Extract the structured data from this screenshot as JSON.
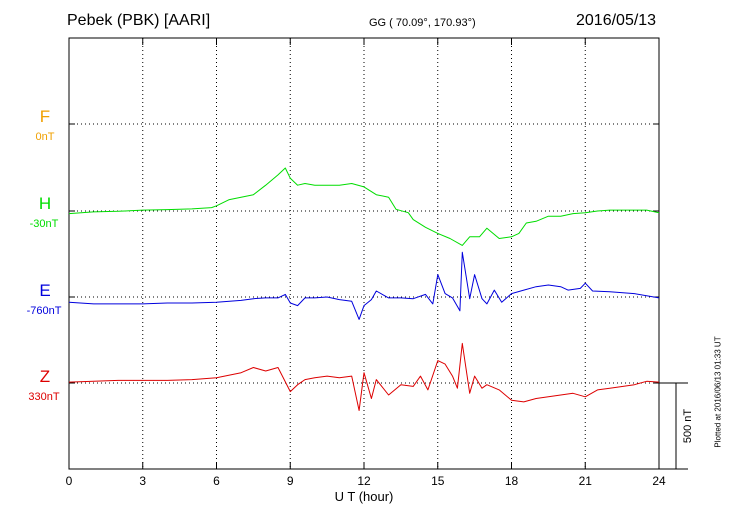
{
  "header": {
    "station": "Pebek (PBK)  [AARI]",
    "coords": "GG ( 70.09°, 170.93°)",
    "date": "2016/05/13"
  },
  "plotted_note": "Plotted at 2016/06/13 01:33 UT",
  "chart_data": {
    "type": "line",
    "title": "Pebek (PBK)  [AARI]",
    "xlabel": "U T (hour)",
    "ylabel": "",
    "xlim": [
      0,
      24
    ],
    "x_ticks": [
      0,
      3,
      6,
      9,
      12,
      15,
      18,
      21,
      24
    ],
    "grid": true,
    "scale_bar": {
      "label": "500 nT",
      "value": 500
    },
    "series": [
      {
        "name": "F",
        "offset_label": "0nT",
        "color": "#f0a000",
        "values": []
      },
      {
        "name": "H",
        "offset_label": "-30nT",
        "color": "#00dd00",
        "points": [
          [
            0,
            -15
          ],
          [
            1,
            -5
          ],
          [
            2,
            -2
          ],
          [
            3,
            5
          ],
          [
            4,
            8
          ],
          [
            5,
            12
          ],
          [
            5.8,
            20
          ],
          [
            6,
            30
          ],
          [
            6.5,
            65
          ],
          [
            7,
            80
          ],
          [
            7.5,
            95
          ],
          [
            8,
            150
          ],
          [
            8.5,
            210
          ],
          [
            8.8,
            250
          ],
          [
            9,
            190
          ],
          [
            9.3,
            150
          ],
          [
            9.6,
            160
          ],
          [
            10,
            150
          ],
          [
            10.5,
            150
          ],
          [
            11,
            150
          ],
          [
            11.5,
            160
          ],
          [
            12,
            140
          ],
          [
            12.5,
            95
          ],
          [
            13,
            80
          ],
          [
            13.3,
            10
          ],
          [
            13.8,
            -10
          ],
          [
            14,
            -50
          ],
          [
            14.5,
            -95
          ],
          [
            15,
            -130
          ],
          [
            15.5,
            -160
          ],
          [
            16,
            -200
          ],
          [
            16.3,
            -150
          ],
          [
            16.7,
            -150
          ],
          [
            17,
            -100
          ],
          [
            17.5,
            -160
          ],
          [
            18,
            -150
          ],
          [
            18.3,
            -130
          ],
          [
            18.6,
            -70
          ],
          [
            19,
            -60
          ],
          [
            19.5,
            -30
          ],
          [
            20,
            -30
          ],
          [
            20.5,
            -15
          ],
          [
            21,
            -10
          ],
          [
            21.5,
            0
          ],
          [
            22,
            5
          ],
          [
            22.5,
            5
          ],
          [
            23,
            5
          ],
          [
            23.5,
            5
          ],
          [
            24,
            -10
          ]
        ]
      },
      {
        "name": "E",
        "offset_label": "-760nT",
        "color": "#0000dd",
        "points": [
          [
            0,
            -30
          ],
          [
            1,
            -40
          ],
          [
            2,
            -40
          ],
          [
            3,
            -40
          ],
          [
            4,
            -35
          ],
          [
            5,
            -35
          ],
          [
            6,
            -30
          ],
          [
            7,
            -20
          ],
          [
            7.5,
            -10
          ],
          [
            8,
            -5
          ],
          [
            8.5,
            -5
          ],
          [
            8.8,
            15
          ],
          [
            9,
            -35
          ],
          [
            9.3,
            -50
          ],
          [
            9.6,
            -5
          ],
          [
            10,
            -5
          ],
          [
            10.5,
            0
          ],
          [
            11,
            -15
          ],
          [
            11.5,
            -25
          ],
          [
            11.8,
            -130
          ],
          [
            12,
            -50
          ],
          [
            12.3,
            -15
          ],
          [
            12.5,
            35
          ],
          [
            13,
            -5
          ],
          [
            13.5,
            -5
          ],
          [
            14,
            -10
          ],
          [
            14.5,
            15
          ],
          [
            14.8,
            -40
          ],
          [
            15,
            130
          ],
          [
            15.3,
            20
          ],
          [
            15.6,
            -5
          ],
          [
            15.9,
            -80
          ],
          [
            16,
            260
          ],
          [
            16.3,
            -10
          ],
          [
            16.5,
            130
          ],
          [
            16.8,
            -10
          ],
          [
            17,
            -40
          ],
          [
            17.3,
            40
          ],
          [
            17.6,
            -30
          ],
          [
            18,
            20
          ],
          [
            18.5,
            40
          ],
          [
            19,
            60
          ],
          [
            19.5,
            70
          ],
          [
            20,
            60
          ],
          [
            20.3,
            40
          ],
          [
            20.8,
            50
          ],
          [
            21,
            80
          ],
          [
            21.3,
            35
          ],
          [
            22,
            30
          ],
          [
            23,
            20
          ],
          [
            24,
            -5
          ]
        ]
      },
      {
        "name": "Z",
        "offset_label": "330nT",
        "color": "#dd0000",
        "points": [
          [
            0,
            5
          ],
          [
            1,
            10
          ],
          [
            2,
            15
          ],
          [
            3,
            15
          ],
          [
            4,
            15
          ],
          [
            5,
            20
          ],
          [
            6,
            30
          ],
          [
            7,
            60
          ],
          [
            7.5,
            90
          ],
          [
            8,
            70
          ],
          [
            8.5,
            90
          ],
          [
            9,
            -50
          ],
          [
            9.3,
            -10
          ],
          [
            9.6,
            20
          ],
          [
            10,
            30
          ],
          [
            10.5,
            40
          ],
          [
            11,
            30
          ],
          [
            11.5,
            40
          ],
          [
            11.8,
            -160
          ],
          [
            12,
            60
          ],
          [
            12.3,
            -90
          ],
          [
            12.5,
            20
          ],
          [
            13,
            -70
          ],
          [
            13.5,
            -10
          ],
          [
            14,
            -20
          ],
          [
            14.3,
            40
          ],
          [
            14.6,
            -40
          ],
          [
            15,
            130
          ],
          [
            15.3,
            110
          ],
          [
            15.6,
            40
          ],
          [
            15.8,
            -30
          ],
          [
            16,
            230
          ],
          [
            16.3,
            -60
          ],
          [
            16.5,
            40
          ],
          [
            16.8,
            -30
          ],
          [
            17,
            -10
          ],
          [
            17.5,
            -40
          ],
          [
            18,
            -100
          ],
          [
            18.5,
            -110
          ],
          [
            19,
            -90
          ],
          [
            19.5,
            -80
          ],
          [
            20,
            -70
          ],
          [
            20.5,
            -60
          ],
          [
            21,
            -80
          ],
          [
            21.5,
            -40
          ],
          [
            22,
            -30
          ],
          [
            23,
            -10
          ],
          [
            23.5,
            10
          ],
          [
            24,
            5
          ]
        ]
      }
    ]
  }
}
